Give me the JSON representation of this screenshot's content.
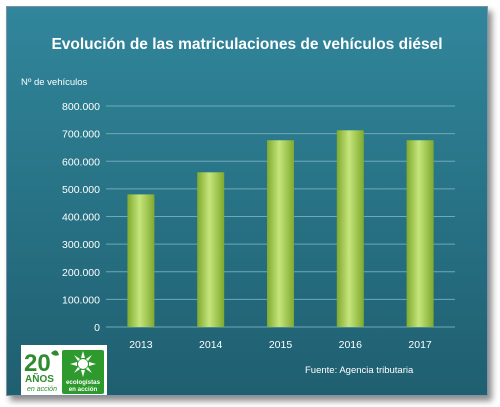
{
  "chart_data": {
    "type": "bar",
    "title": "Evolución de las matriculaciones de vehículos diésel",
    "ylabel": "Nº de vehículos",
    "xlabel": "",
    "categories": [
      "2013",
      "2014",
      "2015",
      "2016",
      "2017"
    ],
    "values": [
      480000,
      560000,
      676000,
      712000,
      676000
    ],
    "ylim": [
      0,
      800000
    ],
    "yticks": [
      "0",
      "100.000",
      "200.000",
      "300.000",
      "400.000",
      "500.000",
      "600.000",
      "700.000",
      "800.000"
    ],
    "grid": true,
    "legend": "none",
    "colors": {
      "background_top": "#31869b",
      "background_bottom": "#1f5f70",
      "bar_light": "#c6e57c",
      "bar_dark": "#7faa2e",
      "gridline": "#6fa9b8"
    }
  },
  "source": "Fuente: Agencia tributaria",
  "logo": {
    "years": "20",
    "years_word": "AÑOS",
    "tagline": "en acción",
    "org_line1": "ecologistas",
    "org_line2": "en acción"
  }
}
